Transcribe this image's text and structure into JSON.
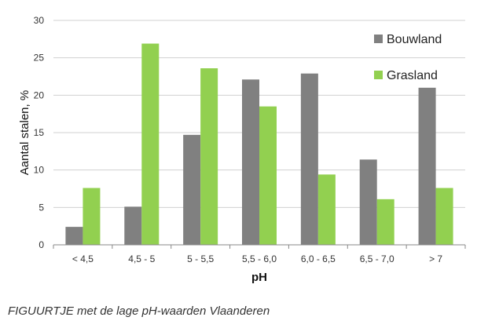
{
  "chart_data": {
    "type": "bar",
    "title": "",
    "xlabel": "pH",
    "ylabel": "Aantal stalen, %",
    "categories": [
      "< 4,5",
      "4,5 - 5",
      "5 - 5,5",
      "5,5 - 6,0",
      "6,0 - 6,5",
      "6,5 - 7,0",
      "> 7"
    ],
    "series": [
      {
        "name": "Bouwland",
        "color": "#808080",
        "values": [
          2.4,
          5.1,
          14.7,
          22.1,
          22.9,
          11.4,
          21.0
        ]
      },
      {
        "name": "Grasland",
        "color": "#92d050",
        "values": [
          7.6,
          26.9,
          23.6,
          18.5,
          9.4,
          6.1,
          7.6
        ]
      }
    ],
    "ylim": [
      0,
      30
    ],
    "yticks": [
      0,
      5,
      10,
      15,
      20,
      25,
      30
    ],
    "grid": true,
    "legend_position": "top-right"
  },
  "caption": "FIGUURTJE met de lage pH-waarden Vlaanderen"
}
